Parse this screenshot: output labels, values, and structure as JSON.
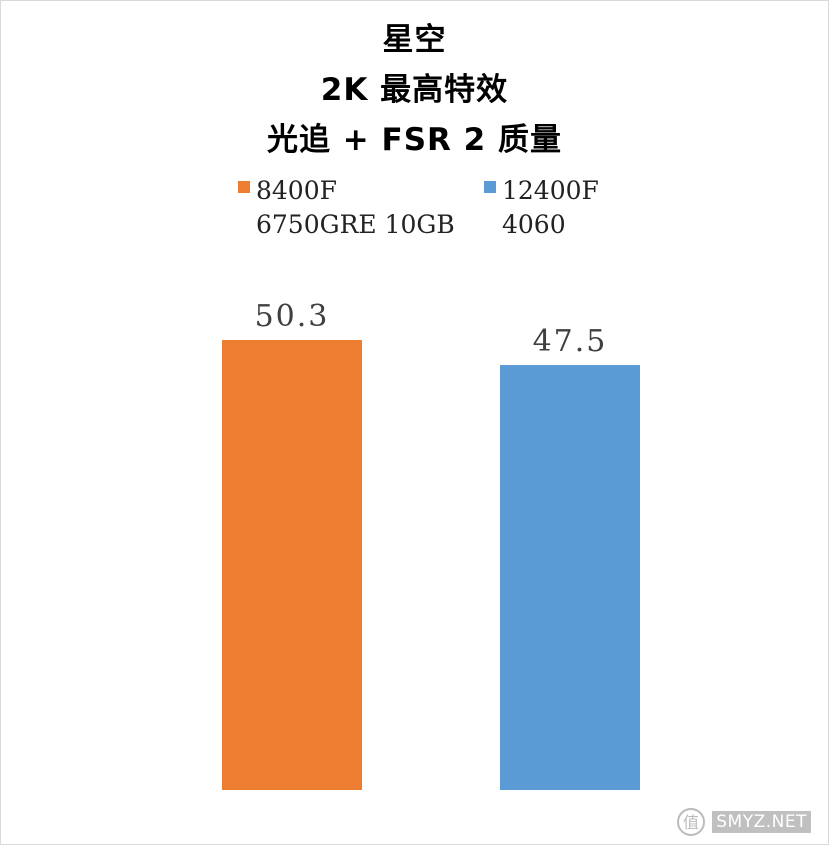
{
  "chart_data": {
    "type": "bar",
    "title_lines": [
      "星空",
      "2K 最高特效",
      "光追 + FSR 2 质量"
    ],
    "categories": [
      ""
    ],
    "series": [
      {
        "name_lines": [
          "8400F",
          "6750GRE 10GB"
        ],
        "values": [
          50.3
        ],
        "color": "#ED7D31"
      },
      {
        "name_lines": [
          "12400F",
          "4060"
        ],
        "values": [
          47.5
        ],
        "color": "#5B9BD5"
      }
    ],
    "data_labels": [
      "50.3",
      "47.5"
    ],
    "ylim": [
      0,
      55
    ],
    "grid": false,
    "legend": "top"
  },
  "watermark": {
    "text": "SMYZ.NET",
    "icon": "smzdm-logo-icon"
  }
}
